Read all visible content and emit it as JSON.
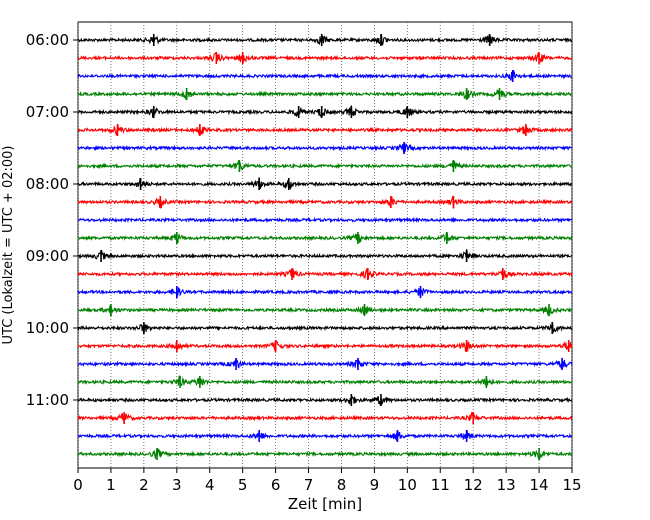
{
  "chart_data": {
    "type": "line",
    "title": "",
    "xlabel": "Zeit  [min]",
    "ylabel": "UTC (Lokalzeit = UTC + 02:00)",
    "xlim": [
      0,
      15
    ],
    "x_ticks": [
      "0",
      "1",
      "2",
      "3",
      "4",
      "5",
      "6",
      "7",
      "8",
      "9",
      "10",
      "11",
      "12",
      "13",
      "14",
      "15"
    ],
    "y_tick_labels": [
      "06:00",
      "07:00",
      "08:00",
      "09:00",
      "10:00",
      "11:00"
    ],
    "grid": "vertical-dotted",
    "trace_start": "06:00",
    "trace_interval_min": 15,
    "trace_count": 24,
    "colors": [
      "#000000",
      "#ff0000",
      "#0000ff",
      "#008000"
    ],
    "events": [
      {
        "trace": 0,
        "x": [
          2.3,
          7.4,
          9.2,
          12.5
        ]
      },
      {
        "trace": 1,
        "x": [
          4.2,
          5.0,
          14.0
        ]
      },
      {
        "trace": 2,
        "x": [
          13.2
        ]
      },
      {
        "trace": 3,
        "x": [
          3.3,
          11.8,
          12.8
        ]
      },
      {
        "trace": 4,
        "x": [
          2.3,
          6.7,
          7.4,
          8.3,
          10.0
        ]
      },
      {
        "trace": 5,
        "x": [
          1.2,
          3.7,
          13.6
        ]
      },
      {
        "trace": 6,
        "x": [
          9.9
        ]
      },
      {
        "trace": 7,
        "x": [
          4.9,
          11.4
        ]
      },
      {
        "trace": 8,
        "x": [
          1.9,
          5.5,
          6.4
        ]
      },
      {
        "trace": 9,
        "x": [
          2.5,
          9.5,
          11.4
        ]
      },
      {
        "trace": 11,
        "x": [
          3.0,
          8.5,
          11.2
        ]
      },
      {
        "trace": 12,
        "x": [
          0.7,
          11.8
        ]
      },
      {
        "trace": 13,
        "x": [
          6.5,
          8.8,
          12.9
        ]
      },
      {
        "trace": 14,
        "x": [
          3.0,
          10.4
        ]
      },
      {
        "trace": 15,
        "x": [
          1.0,
          8.7,
          14.3
        ]
      },
      {
        "trace": 16,
        "x": [
          2.0,
          14.4
        ]
      },
      {
        "trace": 17,
        "x": [
          3.0,
          6.0,
          11.8,
          14.9
        ]
      },
      {
        "trace": 18,
        "x": [
          4.8,
          8.5,
          14.7
        ]
      },
      {
        "trace": 19,
        "x": [
          3.1,
          3.7,
          12.4
        ]
      },
      {
        "trace": 20,
        "x": [
          8.3,
          9.2
        ]
      },
      {
        "trace": 21,
        "x": [
          1.4,
          12.0
        ]
      },
      {
        "trace": 22,
        "x": [
          5.5,
          9.7,
          11.8
        ]
      },
      {
        "trace": 23,
        "x": [
          2.4,
          14.0
        ]
      }
    ]
  }
}
